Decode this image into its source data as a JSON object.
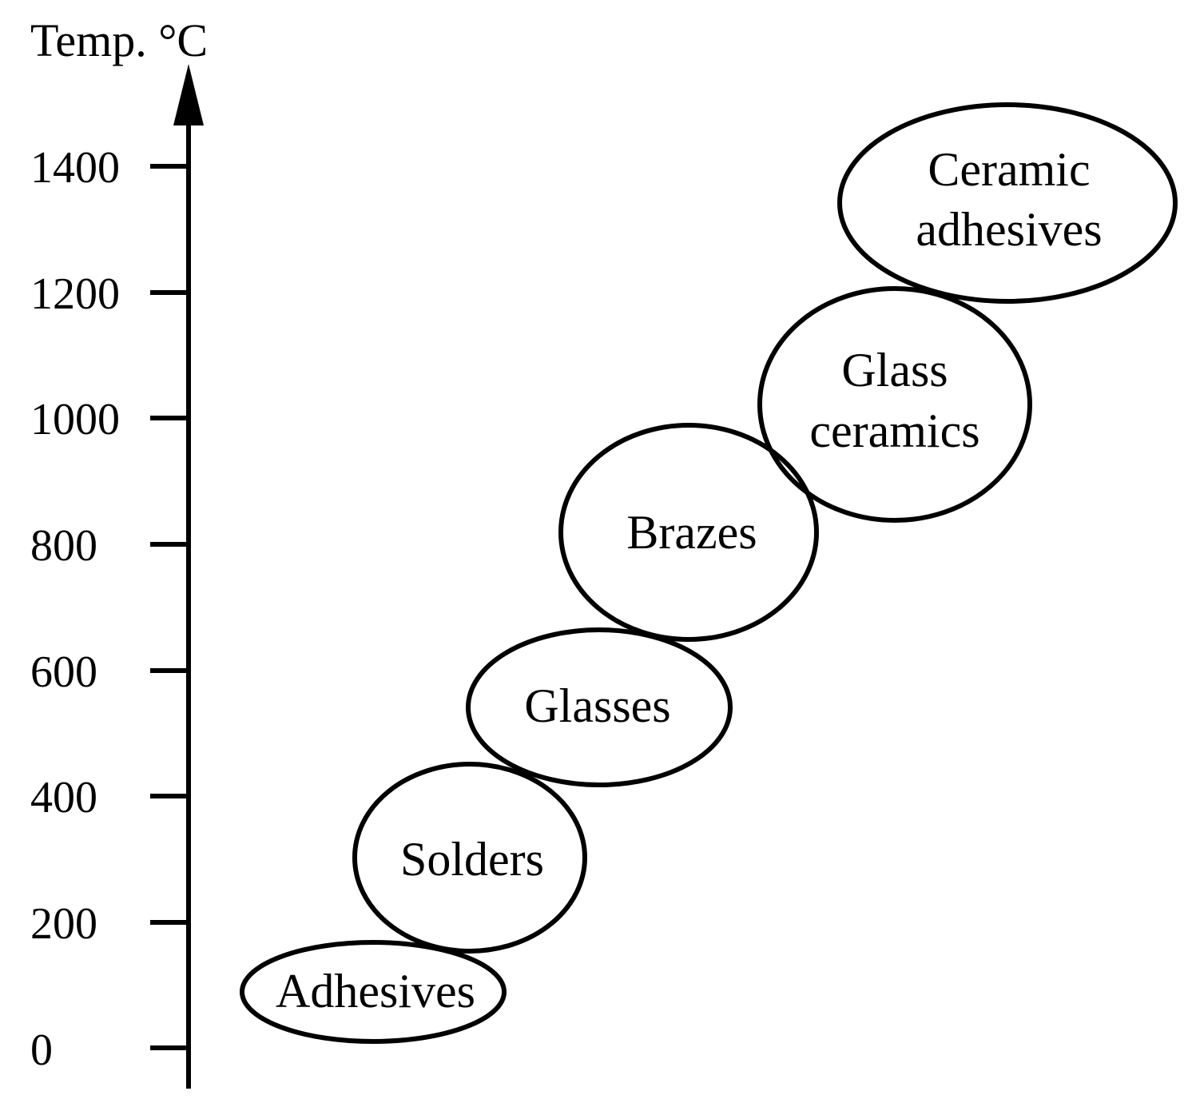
{
  "axis": {
    "title": "Temp. °C",
    "ticks": [
      "0",
      "200",
      "400",
      "600",
      "800",
      "1000",
      "1200",
      "1400"
    ]
  },
  "regions": [
    {
      "id": "adhesives",
      "lines": [
        "Adhesives"
      ]
    },
    {
      "id": "solders",
      "lines": [
        "Solders"
      ]
    },
    {
      "id": "glasses",
      "lines": [
        "Glasses"
      ]
    },
    {
      "id": "brazes",
      "lines": [
        "Brazes"
      ]
    },
    {
      "id": "glass-ceramics",
      "lines": [
        "Glass",
        "ceramics"
      ]
    },
    {
      "id": "ceramic-adhesives",
      "lines": [
        "Ceramic",
        "adhesives"
      ]
    }
  ]
}
